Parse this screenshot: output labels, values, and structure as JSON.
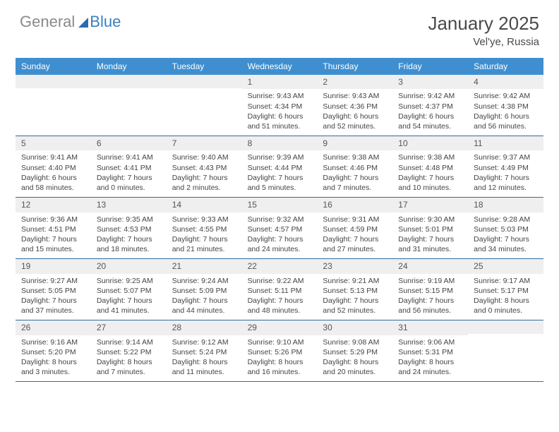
{
  "logo": {
    "part1": "General",
    "part2": "Blue"
  },
  "title": "January 2025",
  "location": "Vel'ye, Russia",
  "colors": {
    "header_bg": "#3f8fd0",
    "daynum_bg": "#efefef",
    "week_border": "#2f6aa5",
    "text": "#444444"
  },
  "dayNames": [
    "Sunday",
    "Monday",
    "Tuesday",
    "Wednesday",
    "Thursday",
    "Friday",
    "Saturday"
  ],
  "weeks": [
    [
      {
        "n": "",
        "sunrise": "",
        "sunset": "",
        "daylight": ""
      },
      {
        "n": "",
        "sunrise": "",
        "sunset": "",
        "daylight": ""
      },
      {
        "n": "",
        "sunrise": "",
        "sunset": "",
        "daylight": ""
      },
      {
        "n": "1",
        "sunrise": "9:43 AM",
        "sunset": "4:34 PM",
        "daylight": "6 hours and 51 minutes."
      },
      {
        "n": "2",
        "sunrise": "9:43 AM",
        "sunset": "4:36 PM",
        "daylight": "6 hours and 52 minutes."
      },
      {
        "n": "3",
        "sunrise": "9:42 AM",
        "sunset": "4:37 PM",
        "daylight": "6 hours and 54 minutes."
      },
      {
        "n": "4",
        "sunrise": "9:42 AM",
        "sunset": "4:38 PM",
        "daylight": "6 hours and 56 minutes."
      }
    ],
    [
      {
        "n": "5",
        "sunrise": "9:41 AM",
        "sunset": "4:40 PM",
        "daylight": "6 hours and 58 minutes."
      },
      {
        "n": "6",
        "sunrise": "9:41 AM",
        "sunset": "4:41 PM",
        "daylight": "7 hours and 0 minutes."
      },
      {
        "n": "7",
        "sunrise": "9:40 AM",
        "sunset": "4:43 PM",
        "daylight": "7 hours and 2 minutes."
      },
      {
        "n": "8",
        "sunrise": "9:39 AM",
        "sunset": "4:44 PM",
        "daylight": "7 hours and 5 minutes."
      },
      {
        "n": "9",
        "sunrise": "9:38 AM",
        "sunset": "4:46 PM",
        "daylight": "7 hours and 7 minutes."
      },
      {
        "n": "10",
        "sunrise": "9:38 AM",
        "sunset": "4:48 PM",
        "daylight": "7 hours and 10 minutes."
      },
      {
        "n": "11",
        "sunrise": "9:37 AM",
        "sunset": "4:49 PM",
        "daylight": "7 hours and 12 minutes."
      }
    ],
    [
      {
        "n": "12",
        "sunrise": "9:36 AM",
        "sunset": "4:51 PM",
        "daylight": "7 hours and 15 minutes."
      },
      {
        "n": "13",
        "sunrise": "9:35 AM",
        "sunset": "4:53 PM",
        "daylight": "7 hours and 18 minutes."
      },
      {
        "n": "14",
        "sunrise": "9:33 AM",
        "sunset": "4:55 PM",
        "daylight": "7 hours and 21 minutes."
      },
      {
        "n": "15",
        "sunrise": "9:32 AM",
        "sunset": "4:57 PM",
        "daylight": "7 hours and 24 minutes."
      },
      {
        "n": "16",
        "sunrise": "9:31 AM",
        "sunset": "4:59 PM",
        "daylight": "7 hours and 27 minutes."
      },
      {
        "n": "17",
        "sunrise": "9:30 AM",
        "sunset": "5:01 PM",
        "daylight": "7 hours and 31 minutes."
      },
      {
        "n": "18",
        "sunrise": "9:28 AM",
        "sunset": "5:03 PM",
        "daylight": "7 hours and 34 minutes."
      }
    ],
    [
      {
        "n": "19",
        "sunrise": "9:27 AM",
        "sunset": "5:05 PM",
        "daylight": "7 hours and 37 minutes."
      },
      {
        "n": "20",
        "sunrise": "9:25 AM",
        "sunset": "5:07 PM",
        "daylight": "7 hours and 41 minutes."
      },
      {
        "n": "21",
        "sunrise": "9:24 AM",
        "sunset": "5:09 PM",
        "daylight": "7 hours and 44 minutes."
      },
      {
        "n": "22",
        "sunrise": "9:22 AM",
        "sunset": "5:11 PM",
        "daylight": "7 hours and 48 minutes."
      },
      {
        "n": "23",
        "sunrise": "9:21 AM",
        "sunset": "5:13 PM",
        "daylight": "7 hours and 52 minutes."
      },
      {
        "n": "24",
        "sunrise": "9:19 AM",
        "sunset": "5:15 PM",
        "daylight": "7 hours and 56 minutes."
      },
      {
        "n": "25",
        "sunrise": "9:17 AM",
        "sunset": "5:17 PM",
        "daylight": "8 hours and 0 minutes."
      }
    ],
    [
      {
        "n": "26",
        "sunrise": "9:16 AM",
        "sunset": "5:20 PM",
        "daylight": "8 hours and 3 minutes."
      },
      {
        "n": "27",
        "sunrise": "9:14 AM",
        "sunset": "5:22 PM",
        "daylight": "8 hours and 7 minutes."
      },
      {
        "n": "28",
        "sunrise": "9:12 AM",
        "sunset": "5:24 PM",
        "daylight": "8 hours and 11 minutes."
      },
      {
        "n": "29",
        "sunrise": "9:10 AM",
        "sunset": "5:26 PM",
        "daylight": "8 hours and 16 minutes."
      },
      {
        "n": "30",
        "sunrise": "9:08 AM",
        "sunset": "5:29 PM",
        "daylight": "8 hours and 20 minutes."
      },
      {
        "n": "31",
        "sunrise": "9:06 AM",
        "sunset": "5:31 PM",
        "daylight": "8 hours and 24 minutes."
      },
      {
        "n": "",
        "sunrise": "",
        "sunset": "",
        "daylight": ""
      }
    ]
  ],
  "labels": {
    "sunrise": "Sunrise: ",
    "sunset": "Sunset: ",
    "daylight": "Daylight: "
  }
}
